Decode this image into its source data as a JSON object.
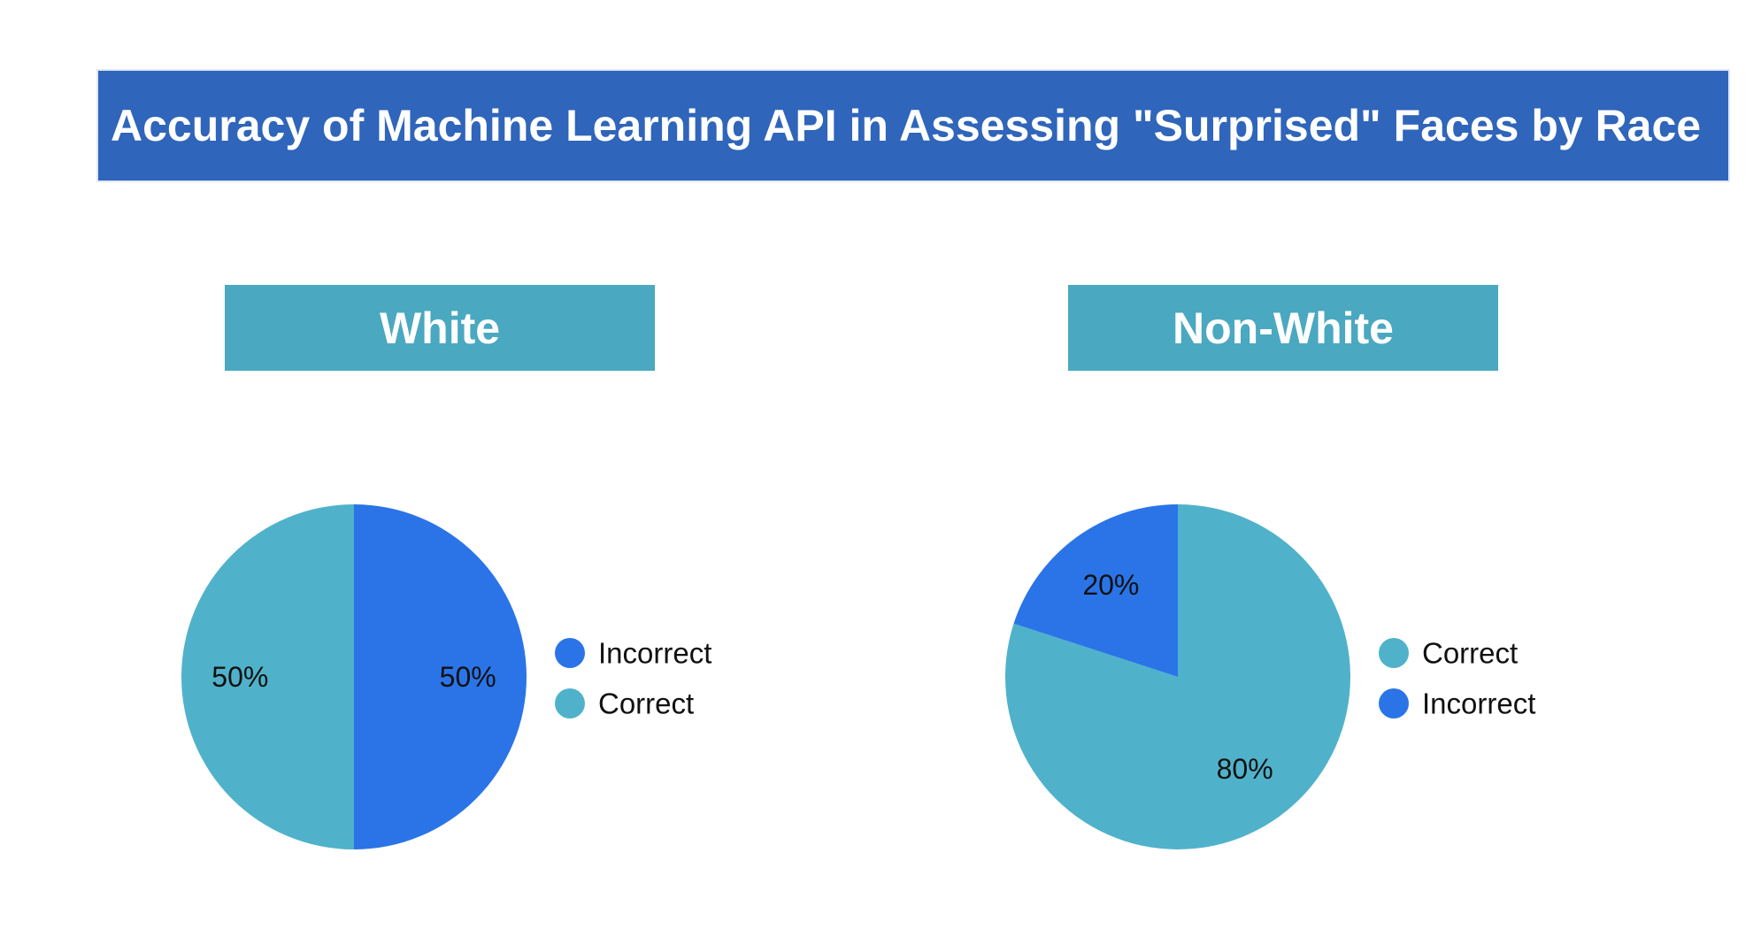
{
  "title": "Accuracy of Machine Learning API in Assessing \"Surprised\" Faces by Race",
  "colors": {
    "banner": "#2f65ba",
    "header": "#4aa8c0",
    "correct": "#4fb2ca",
    "incorrect": "#2a74e8"
  },
  "chart_data": [
    {
      "type": "pie",
      "title": "White",
      "slices": [
        {
          "label": "Incorrect",
          "value": 50,
          "display": "50%",
          "color": "#2a74e8"
        },
        {
          "label": "Correct",
          "value": 50,
          "display": "50%",
          "color": "#4fb2ca"
        }
      ],
      "legend": [
        "Incorrect",
        "Correct"
      ],
      "legend_position": "right"
    },
    {
      "type": "pie",
      "title": "Non-White",
      "slices": [
        {
          "label": "Correct",
          "value": 80,
          "display": "80%",
          "color": "#4fb2ca"
        },
        {
          "label": "Incorrect",
          "value": 20,
          "display": "20%",
          "color": "#2a74e8"
        }
      ],
      "legend": [
        "Correct",
        "Incorrect"
      ],
      "legend_position": "right"
    }
  ]
}
